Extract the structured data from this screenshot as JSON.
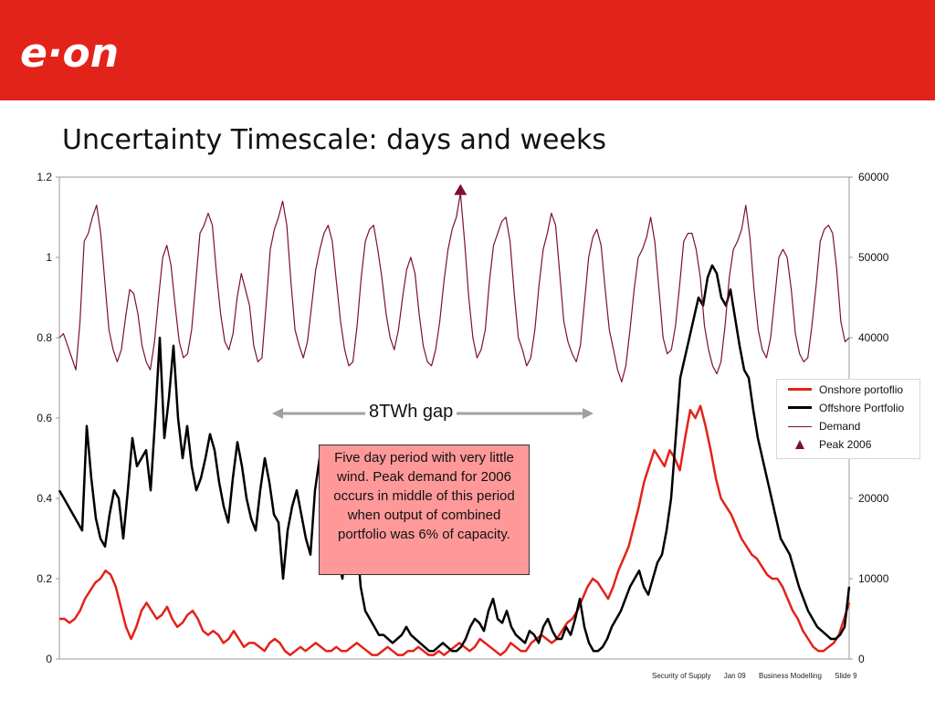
{
  "header": {
    "logo_text": "e·on"
  },
  "slide": {
    "title": "Uncertainty Timescale: days and weeks"
  },
  "chart_data": {
    "type": "line",
    "title": "",
    "xlabel": "",
    "ylabel": "",
    "ylim_left": [
      0,
      1.2
    ],
    "ylim_right": [
      0,
      60000
    ],
    "yticks_left": [
      "1.2",
      "1",
      "0.8",
      "0.6",
      "0.4",
      "0.2",
      "0"
    ],
    "yticks_right": [
      "60000",
      "50000",
      "40000",
      "30000",
      "20000",
      "10000",
      "0"
    ],
    "grid": false,
    "legend_position": "right",
    "series": [
      {
        "name": "Onshore portoflio",
        "axis": "left",
        "color": "#e2231a",
        "values": [
          0.1,
          0.1,
          0.09,
          0.1,
          0.12,
          0.15,
          0.17,
          0.19,
          0.2,
          0.22,
          0.21,
          0.18,
          0.13,
          0.08,
          0.05,
          0.08,
          0.12,
          0.14,
          0.12,
          0.1,
          0.11,
          0.13,
          0.1,
          0.08,
          0.09,
          0.11,
          0.12,
          0.1,
          0.07,
          0.06,
          0.07,
          0.06,
          0.04,
          0.05,
          0.07,
          0.05,
          0.03,
          0.04,
          0.04,
          0.03,
          0.02,
          0.04,
          0.05,
          0.04,
          0.02,
          0.01,
          0.02,
          0.03,
          0.02,
          0.03,
          0.04,
          0.03,
          0.02,
          0.02,
          0.03,
          0.02,
          0.02,
          0.03,
          0.04,
          0.03,
          0.02,
          0.01,
          0.01,
          0.02,
          0.03,
          0.02,
          0.01,
          0.01,
          0.02,
          0.02,
          0.03,
          0.02,
          0.01,
          0.01,
          0.02,
          0.01,
          0.02,
          0.03,
          0.04,
          0.03,
          0.02,
          0.03,
          0.05,
          0.04,
          0.03,
          0.02,
          0.01,
          0.02,
          0.04,
          0.03,
          0.02,
          0.02,
          0.04,
          0.05,
          0.06,
          0.05,
          0.04,
          0.05,
          0.07,
          0.09,
          0.1,
          0.12,
          0.15,
          0.18,
          0.2,
          0.19,
          0.17,
          0.15,
          0.18,
          0.22,
          0.25,
          0.28,
          0.33,
          0.38,
          0.44,
          0.48,
          0.52,
          0.5,
          0.48,
          0.52,
          0.5,
          0.47,
          0.55,
          0.62,
          0.6,
          0.63,
          0.58,
          0.52,
          0.45,
          0.4,
          0.38,
          0.36,
          0.33,
          0.3,
          0.28,
          0.26,
          0.25,
          0.23,
          0.21,
          0.2,
          0.2,
          0.18,
          0.15,
          0.12,
          0.1,
          0.07,
          0.05,
          0.03,
          0.02,
          0.02,
          0.03,
          0.04,
          0.06,
          0.1,
          0.14
        ]
      },
      {
        "name": "Offshore Portfolio",
        "axis": "left",
        "color": "#000000",
        "values": [
          0.42,
          0.4,
          0.38,
          0.36,
          0.34,
          0.32,
          0.58,
          0.45,
          0.35,
          0.3,
          0.28,
          0.36,
          0.42,
          0.4,
          0.3,
          0.42,
          0.55,
          0.48,
          0.5,
          0.52,
          0.42,
          0.6,
          0.8,
          0.55,
          0.65,
          0.78,
          0.6,
          0.5,
          0.58,
          0.48,
          0.42,
          0.45,
          0.5,
          0.56,
          0.52,
          0.44,
          0.38,
          0.34,
          0.45,
          0.54,
          0.48,
          0.4,
          0.35,
          0.32,
          0.42,
          0.5,
          0.44,
          0.36,
          0.34,
          0.2,
          0.32,
          0.38,
          0.42,
          0.36,
          0.3,
          0.26,
          0.42,
          0.5,
          0.44,
          0.38,
          0.3,
          0.25,
          0.2,
          0.3,
          0.38,
          0.32,
          0.18,
          0.12,
          0.1,
          0.08,
          0.06,
          0.06,
          0.05,
          0.04,
          0.05,
          0.06,
          0.08,
          0.06,
          0.05,
          0.04,
          0.03,
          0.02,
          0.02,
          0.03,
          0.04,
          0.03,
          0.02,
          0.02,
          0.03,
          0.05,
          0.08,
          0.1,
          0.09,
          0.07,
          0.12,
          0.15,
          0.1,
          0.09,
          0.12,
          0.08,
          0.06,
          0.05,
          0.04,
          0.07,
          0.06,
          0.04,
          0.08,
          0.1,
          0.07,
          0.05,
          0.05,
          0.08,
          0.06,
          0.1,
          0.15,
          0.08,
          0.04,
          0.02,
          0.02,
          0.03,
          0.05,
          0.08,
          0.1,
          0.12,
          0.15,
          0.18,
          0.2,
          0.22,
          0.18,
          0.16,
          0.2,
          0.24,
          0.26,
          0.32,
          0.4,
          0.55,
          0.7,
          0.75,
          0.8,
          0.85,
          0.9,
          0.88,
          0.95,
          0.98,
          0.96,
          0.9,
          0.88,
          0.92,
          0.85,
          0.78,
          0.72,
          0.7,
          0.62,
          0.55,
          0.5,
          0.45,
          0.4,
          0.35,
          0.3,
          0.28,
          0.26,
          0.22,
          0.18,
          0.15,
          0.12,
          0.1,
          0.08,
          0.07,
          0.06,
          0.05,
          0.05,
          0.06,
          0.08,
          0.18
        ]
      },
      {
        "name": "Demand",
        "axis": "right",
        "color": "#7b1030",
        "values": [
          40000,
          40500,
          39000,
          37500,
          36000,
          42000,
          52000,
          53000,
          55000,
          56500,
          53000,
          47000,
          41000,
          38500,
          37000,
          38500,
          42500,
          46000,
          45500,
          43000,
          39000,
          37000,
          36000,
          39500,
          45000,
          50000,
          51500,
          49000,
          44000,
          39500,
          37500,
          38000,
          41000,
          47000,
          53000,
          54000,
          55500,
          54000,
          48000,
          43000,
          39500,
          38500,
          40500,
          45000,
          48000,
          46000,
          44000,
          39000,
          37000,
          37500,
          44000,
          51000,
          53500,
          55000,
          57000,
          54000,
          47000,
          41000,
          39000,
          37500,
          39500,
          44000,
          48500,
          51000,
          53000,
          54000,
          52000,
          47000,
          42000,
          38500,
          36500,
          37000,
          41500,
          47500,
          52000,
          53500,
          54000,
          51000,
          47500,
          43000,
          40000,
          38500,
          41000,
          45000,
          48500,
          50000,
          48000,
          43000,
          39000,
          37000,
          36500,
          38500,
          42000,
          47000,
          51000,
          53500,
          55000,
          58000,
          52000,
          45000,
          40000,
          37500,
          38500,
          41000,
          47000,
          51500,
          53000,
          54500,
          55000,
          52000,
          45500,
          40000,
          38500,
          36500,
          37500,
          41000,
          46500,
          51000,
          53000,
          55500,
          54000,
          48000,
          42000,
          39500,
          38000,
          37000,
          39000,
          44500,
          50000,
          52500,
          53500,
          51500,
          46000,
          41000,
          38500,
          36000,
          34500,
          36500,
          41000,
          46000,
          50000,
          51000,
          52500,
          55000,
          52000,
          46000,
          40000,
          38000,
          38500,
          41500,
          46500,
          52000,
          53000,
          53000,
          51000,
          47500,
          41500,
          38500,
          36500,
          35500,
          37000,
          41500,
          47500,
          51000,
          52000,
          53500,
          56500,
          52500,
          46000,
          41000,
          38500,
          37500,
          40000,
          45000,
          50000,
          51000,
          50000,
          46000,
          40500,
          38000,
          37000,
          37500,
          41500,
          46500,
          52000,
          53500,
          54000,
          53000,
          48500,
          42000,
          39500,
          40000
        ]
      }
    ],
    "annotations": [
      {
        "type": "marker",
        "series": "Peak 2006",
        "axis": "right",
        "index": 97,
        "value": 58000,
        "color": "#7b1030"
      },
      {
        "type": "text",
        "label": "8TWh gap"
      },
      {
        "type": "textbox",
        "label": "Five day period with very little wind. Peak demand for 2006 occurs in middle of this period when output of combined portfolio was 6% of capacity."
      }
    ],
    "legend": [
      {
        "label": "Onshore portoflio",
        "color": "#e2231a",
        "style": "line-thick"
      },
      {
        "label": "Offshore Portfolio",
        "color": "#000000",
        "style": "line-thick"
      },
      {
        "label": "Demand",
        "color": "#7b1030",
        "style": "line-thin"
      },
      {
        "label": "Peak 2006",
        "color": "#7b1030",
        "style": "triangle"
      }
    ]
  },
  "footer": {
    "items": [
      "Security of Supply",
      "Jan 09",
      "Business Modelling",
      "Slide 9"
    ]
  }
}
